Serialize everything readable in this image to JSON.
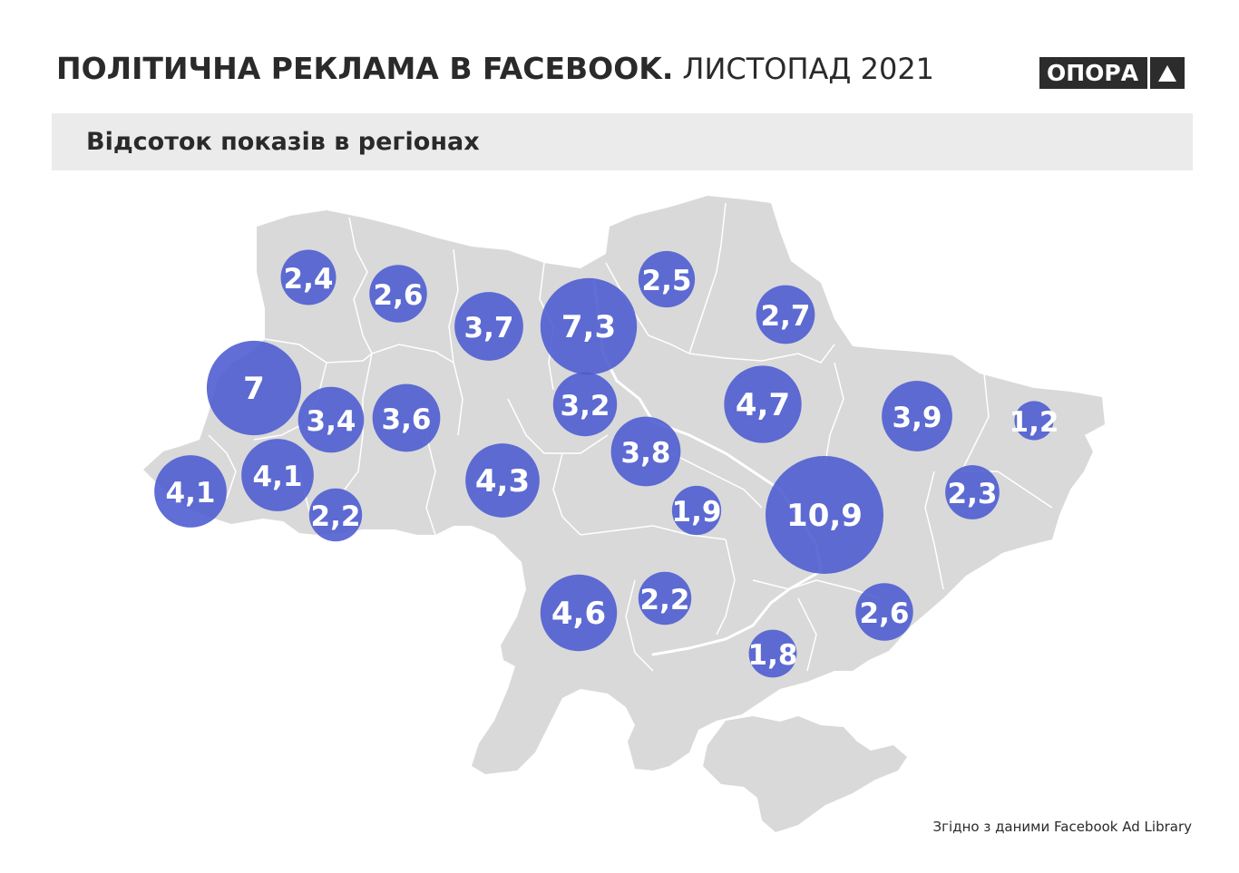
{
  "header": {
    "title_bold": "ПОЛІТИЧНА РЕКЛАМА В FACEBOOK.",
    "title_light": "ЛИСТОПАД 2021",
    "logo_text": "ОПОРА"
  },
  "subtitle": "Відсоток показів в регіонах",
  "source": "Згідно з даними Facebook Ad Library",
  "colors": {
    "bubble": "#4a5ad0",
    "map_fill": "#d9d9d9",
    "map_border": "#ffffff",
    "title": "#2a2a2a",
    "subtitle_bar": "#ebebeb",
    "logo_bg": "#2c2c2c"
  },
  "regions": [
    {
      "region": "Волинська",
      "label": "2,4",
      "value": 2.4
    },
    {
      "region": "Рівненська",
      "label": "2,6",
      "value": 2.6
    },
    {
      "region": "Житомирська",
      "label": "3,7",
      "value": 3.7
    },
    {
      "region": "Київ",
      "label": "7,3",
      "value": 7.3
    },
    {
      "region": "Чернігівська",
      "label": "2,5",
      "value": 2.5
    },
    {
      "region": "Сумська",
      "label": "2,7",
      "value": 2.7
    },
    {
      "region": "Львівська",
      "label": "7",
      "value": 7
    },
    {
      "region": "Тернопільська",
      "label": "3,4",
      "value": 3.4
    },
    {
      "region": "Хмельницька",
      "label": "3,6",
      "value": 3.6
    },
    {
      "region": "Київська",
      "label": "3,2",
      "value": 3.2
    },
    {
      "region": "Полтавська",
      "label": "4,7",
      "value": 4.7
    },
    {
      "region": "Харківська",
      "label": "3,9",
      "value": 3.9
    },
    {
      "region": "Луганська",
      "label": "1,2",
      "value": 1.2
    },
    {
      "region": "Закарпатська",
      "label": "4,1",
      "value": 4.1
    },
    {
      "region": "Івано-Франківська",
      "label": "4,1",
      "value": 4.1
    },
    {
      "region": "Чернівецька",
      "label": "2,2",
      "value": 2.2
    },
    {
      "region": "Вінницька",
      "label": "4,3",
      "value": 4.3
    },
    {
      "region": "Черкаська",
      "label": "3,8",
      "value": 3.8
    },
    {
      "region": "Кіровоградська",
      "label": "1,9",
      "value": 1.9
    },
    {
      "region": "Дніпропетровська",
      "label": "10,9",
      "value": 10.9
    },
    {
      "region": "Донецька",
      "label": "2,3",
      "value": 2.3
    },
    {
      "region": "Одеська",
      "label": "4,6",
      "value": 4.6
    },
    {
      "region": "Миколаївська",
      "label": "2,2",
      "value": 2.2
    },
    {
      "region": "Херсонська",
      "label": "1,8",
      "value": 1.8
    },
    {
      "region": "Запорізька",
      "label": "2,6",
      "value": 2.6
    }
  ]
}
